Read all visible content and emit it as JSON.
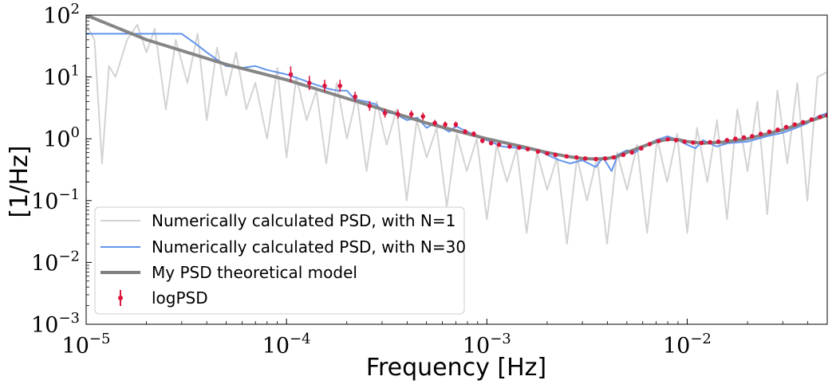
{
  "chart_data": {
    "type": "line",
    "xscale": "log",
    "yscale": "log",
    "xlabel": "Frequency [Hz]",
    "ylabel": "[1/Hz]",
    "xlim": [
      1e-05,
      0.05
    ],
    "ylim": [
      0.001,
      100
    ],
    "x_ticks": [
      {
        "base": "10",
        "exp": "−5",
        "value": 1e-05
      },
      {
        "base": "10",
        "exp": "−4",
        "value": 0.0001
      },
      {
        "base": "10",
        "exp": "−3",
        "value": 0.001
      },
      {
        "base": "10",
        "exp": "−2",
        "value": 0.01
      }
    ],
    "y_ticks": [
      {
        "base": "10",
        "exp": "2",
        "value": 100
      },
      {
        "base": "10",
        "exp": "1",
        "value": 10
      },
      {
        "base": "10",
        "exp": "0",
        "value": 1
      },
      {
        "base": "10",
        "exp": "−1",
        "value": 0.1
      },
      {
        "base": "10",
        "exp": "−2",
        "value": 0.01
      },
      {
        "base": "10",
        "exp": "−3",
        "value": 0.001
      }
    ],
    "legend_position": "lower-left",
    "series": [
      {
        "name": "Numerically calculated PSD, with N=1",
        "kind": "line",
        "color": "#d3d3d3",
        "x": [
          1e-05,
          1.1e-05,
          1.2e-05,
          1.3e-05,
          1.4e-05,
          1.5e-05,
          1.6e-05,
          1.8e-05,
          2e-05,
          2.2e-05,
          2.5e-05,
          2.8e-05,
          3.2e-05,
          3.6e-05,
          4e-05,
          4.5e-05,
          5e-05,
          5.6e-05,
          6.3e-05,
          7e-05,
          8e-05,
          9e-05,
          0.0001,
          0.000112,
          0.000126,
          0.000141,
          0.000158,
          0.000178,
          0.0002,
          0.000224,
          0.000251,
          0.000282,
          0.000316,
          0.000355,
          0.000398,
          0.000447,
          0.000501,
          0.000562,
          0.000631,
          0.000708,
          0.000794,
          0.000891,
          0.001,
          0.00112,
          0.00126,
          0.00141,
          0.00158,
          0.00178,
          0.002,
          0.00224,
          0.00251,
          0.00282,
          0.00316,
          0.00355,
          0.00398,
          0.00447,
          0.00501,
          0.00562,
          0.00631,
          0.00708,
          0.00794,
          0.00891,
          0.01,
          0.0112,
          0.0126,
          0.0141,
          0.0158,
          0.0178,
          0.02,
          0.0224,
          0.0251,
          0.0282,
          0.0316,
          0.0355,
          0.0398,
          0.0447,
          0.05
        ],
        "y": [
          70,
          40,
          0.4,
          15,
          10,
          20,
          40,
          70,
          25,
          60,
          3,
          40,
          8,
          50,
          2,
          30,
          5,
          25,
          3,
          8,
          1,
          14,
          0.5,
          10,
          2,
          6,
          0.4,
          8,
          1,
          5,
          0.3,
          4,
          0.8,
          3,
          0.1,
          2,
          0.5,
          1.5,
          0.08,
          1.2,
          0.3,
          1,
          0.05,
          0.8,
          0.2,
          0.7,
          0.03,
          0.6,
          0.15,
          0.5,
          0.02,
          0.5,
          0.1,
          0.5,
          0.02,
          0.6,
          0.15,
          0.8,
          0.03,
          1,
          0.2,
          1.2,
          0.03,
          1.5,
          0.2,
          2,
          0.05,
          3,
          0.3,
          4,
          0.06,
          6,
          0.4,
          8,
          0.1,
          10,
          12
        ]
      },
      {
        "name": "Numerically calculated PSD, with N=30",
        "kind": "line",
        "color": "#6495ed",
        "x": [
          1e-05,
          3e-05,
          3.5e-05,
          4e-05,
          5e-05,
          6e-05,
          7e-05,
          8e-05,
          0.0001,
          0.00012,
          0.00014,
          0.00016,
          0.00018,
          0.0002,
          0.00022,
          0.00025,
          0.00028,
          0.0003,
          0.00035,
          0.0004,
          0.00045,
          0.0005,
          0.00055,
          0.0006,
          0.00065,
          0.0007,
          0.0008,
          0.0009,
          0.001,
          0.0012,
          0.0015,
          0.0018,
          0.002,
          0.0023,
          0.0026,
          0.003,
          0.0035,
          0.0038,
          0.0042,
          0.0045,
          0.005,
          0.0055,
          0.006,
          0.007,
          0.008,
          0.009,
          0.01,
          0.011,
          0.012,
          0.014,
          0.016,
          0.02,
          0.025,
          0.03,
          0.035,
          0.04,
          0.045,
          0.05
        ],
        "y": [
          50,
          50,
          35,
          25,
          15,
          14,
          15,
          13,
          11,
          9,
          7.5,
          6.5,
          6,
          6,
          4.3,
          4,
          3.6,
          2.8,
          2.5,
          2,
          2.2,
          1.5,
          1.8,
          1.5,
          1.3,
          1.6,
          1.3,
          1.1,
          0.95,
          0.75,
          0.7,
          0.65,
          0.55,
          0.45,
          0.4,
          0.45,
          0.35,
          0.5,
          0.3,
          0.55,
          0.65,
          0.6,
          0.75,
          0.95,
          1.1,
          0.95,
          0.8,
          0.7,
          0.95,
          0.75,
          0.85,
          0.9,
          1.1,
          1.25,
          1.5,
          1.8,
          2.3,
          2.6
        ]
      },
      {
        "name": "My PSD theoretical model",
        "kind": "line",
        "color": "#808080",
        "x": [
          1e-05,
          2e-05,
          5e-05,
          0.0001,
          0.0002,
          0.0005,
          0.001,
          0.0015,
          0.002,
          0.0025,
          0.003,
          0.0035,
          0.004,
          0.0045,
          0.005,
          0.006,
          0.007,
          0.008,
          0.009,
          0.01,
          0.012,
          0.015,
          0.02,
          0.025,
          0.03,
          0.04,
          0.05
        ],
        "y": [
          100,
          40,
          16,
          9,
          4.5,
          1.8,
          1,
          0.75,
          0.6,
          0.52,
          0.48,
          0.47,
          0.48,
          0.52,
          0.6,
          0.75,
          0.9,
          0.98,
          0.97,
          0.9,
          0.85,
          0.88,
          1.0,
          1.2,
          1.4,
          1.9,
          2.4
        ]
      },
      {
        "name": "logPSD",
        "kind": "errorbar",
        "color": "#dc143c",
        "x": [
          0.000105,
          0.00013,
          0.000155,
          0.000185,
          0.00022,
          0.00026,
          0.00031,
          0.00036,
          0.00042,
          0.00048,
          0.00055,
          0.00062,
          0.0007,
          0.00078,
          0.00086,
          0.00095,
          0.00105,
          0.00115,
          0.0013,
          0.00145,
          0.0016,
          0.0018,
          0.002,
          0.0022,
          0.0025,
          0.0028,
          0.0031,
          0.0035,
          0.0039,
          0.0043,
          0.0048,
          0.0053,
          0.0059,
          0.0065,
          0.0072,
          0.008,
          0.0088,
          0.0097,
          0.0107,
          0.0118,
          0.013,
          0.0143,
          0.0158,
          0.0174,
          0.0192,
          0.0211,
          0.0233,
          0.0257,
          0.0283,
          0.0312,
          0.0344,
          0.0379,
          0.0418,
          0.046,
          0.05
        ],
        "y": [
          11,
          8,
          7.2,
          7.2,
          4.8,
          3.4,
          2.6,
          2.5,
          2.5,
          2.3,
          1.8,
          1.7,
          1.7,
          1.3,
          1.2,
          0.93,
          0.85,
          0.8,
          0.75,
          0.72,
          0.68,
          0.62,
          0.58,
          0.55,
          0.52,
          0.5,
          0.48,
          0.47,
          0.48,
          0.5,
          0.55,
          0.6,
          0.7,
          0.82,
          0.92,
          0.98,
          0.95,
          0.9,
          0.87,
          0.86,
          0.88,
          0.9,
          0.95,
          1.0,
          1.05,
          1.1,
          1.2,
          1.3,
          1.4,
          1.55,
          1.7,
          1.85,
          2.05,
          2.25,
          2.4
        ],
        "yerr_factor": [
          1.35,
          1.3,
          1.25,
          1.25,
          1.2,
          1.2,
          1.18,
          1.18,
          1.15,
          1.15,
          1.12,
          1.12,
          1.12,
          1.1,
          1.1,
          1.1,
          1.08,
          1.08,
          1.08,
          1.07,
          1.07,
          1.07,
          1.06,
          1.06,
          1.06,
          1.06,
          1.05,
          1.05,
          1.05,
          1.05,
          1.05,
          1.05,
          1.04,
          1.04,
          1.04,
          1.04,
          1.04,
          1.04,
          1.04,
          1.04,
          1.04,
          1.04,
          1.04,
          1.04,
          1.04,
          1.04,
          1.04,
          1.04,
          1.04,
          1.04,
          1.04,
          1.04,
          1.04,
          1.04,
          1.04
        ]
      }
    ]
  }
}
